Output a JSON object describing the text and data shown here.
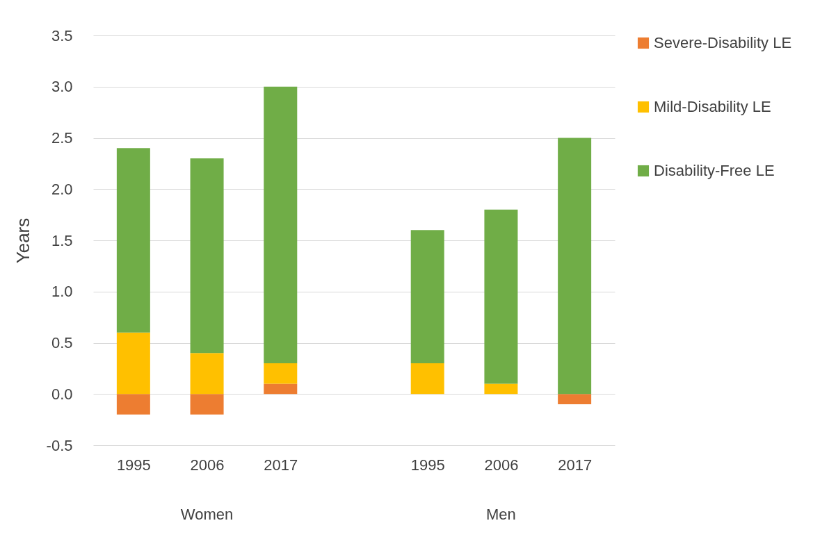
{
  "chart_data": {
    "type": "bar",
    "stacked": true,
    "ylabel": "Years",
    "categories": [
      "1995",
      "2006",
      "2017",
      null,
      "1995",
      "2006",
      "2017"
    ],
    "series": [
      {
        "name": "Severe-Disability LE",
        "color": "#ed7d31",
        "values": [
          -0.2,
          -0.2,
          0.1,
          null,
          0,
          0,
          -0.1
        ]
      },
      {
        "name": "Mild-Disability LE",
        "color": "#ffc000",
        "values": [
          0.6,
          0.4,
          0.2,
          null,
          0.3,
          0.1,
          0
        ]
      },
      {
        "name": "Disability-Free LE",
        "color": "#70ad47",
        "values": [
          1.8,
          1.9,
          2.7,
          null,
          1.3,
          1.7,
          2.5
        ]
      }
    ],
    "ylim": [
      -0.5,
      3.5
    ],
    "yticks": [
      {
        "value": -0.5,
        "label": "-0.5"
      },
      {
        "value": 0,
        "label": "0.0"
      },
      {
        "value": 0.5,
        "label": "0.5"
      },
      {
        "value": 1,
        "label": "1.0"
      },
      {
        "value": 1.5,
        "label": "1.5"
      },
      {
        "value": 2,
        "label": "2.0"
      },
      {
        "value": 2.5,
        "label": "2.5"
      },
      {
        "value": 3,
        "label": "3.0"
      },
      {
        "value": 3.5,
        "label": "3.5"
      }
    ],
    "grid": "y",
    "legend": "right",
    "annotations": [
      "Women",
      "Men"
    ]
  }
}
